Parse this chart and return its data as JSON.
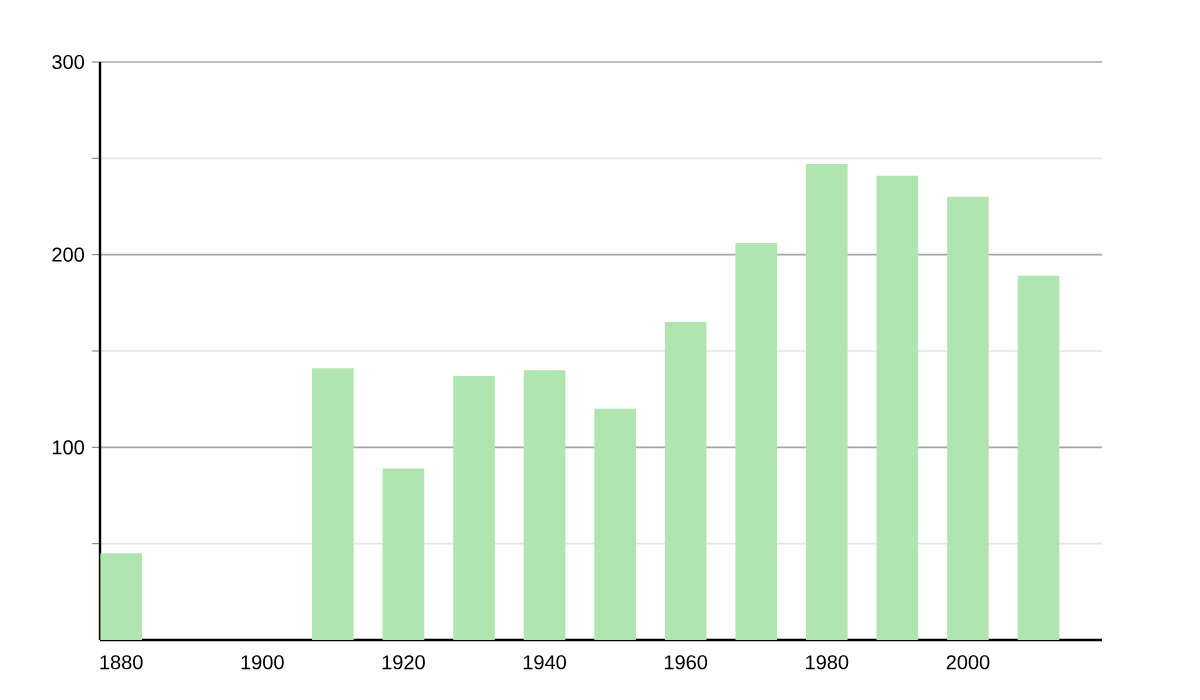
{
  "chart_data": {
    "type": "bar",
    "x": [
      1880,
      1910,
      1920,
      1930,
      1940,
      1950,
      1960,
      1970,
      1980,
      1990,
      2000,
      2010
    ],
    "values": [
      45,
      141,
      89,
      137,
      140,
      120,
      165,
      206,
      247,
      241,
      230,
      189
    ],
    "color": "#b1e5af",
    "xlim": [
      1877,
      2019
    ],
    "xticks": [
      1880,
      1900,
      1920,
      1940,
      1960,
      1980,
      2000
    ],
    "ylim": [
      0,
      300
    ],
    "yticks": [
      {
        "value": 50,
        "label": null
      },
      100,
      {
        "value": 150,
        "label": null
      },
      200,
      {
        "value": 250,
        "label": null
      },
      300
    ],
    "grid": "y"
  }
}
